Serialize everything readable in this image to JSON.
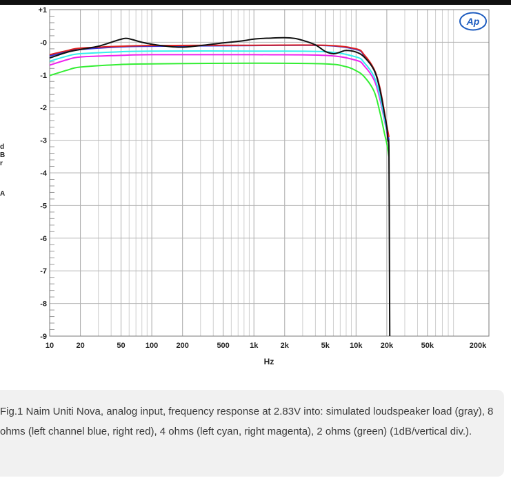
{
  "chart_data": {
    "type": "line",
    "xscale": "log",
    "xlim": [
      10,
      200000
    ],
    "ylim": [
      -9,
      1
    ],
    "xlabel": "Hz",
    "ylabel_chars": [
      "d",
      "B",
      "r",
      "",
      "A"
    ],
    "x_ticks": [
      {
        "v": 10,
        "label": "10"
      },
      {
        "v": 20,
        "label": "20"
      },
      {
        "v": 50,
        "label": "50"
      },
      {
        "v": 100,
        "label": "100"
      },
      {
        "v": 200,
        "label": "200"
      },
      {
        "v": 500,
        "label": "500"
      },
      {
        "v": 1000,
        "label": "1k"
      },
      {
        "v": 2000,
        "label": "2k"
      },
      {
        "v": 5000,
        "label": "5k"
      },
      {
        "v": 10000,
        "label": "10k"
      },
      {
        "v": 20000,
        "label": "20k"
      },
      {
        "v": 50000,
        "label": "50k"
      },
      {
        "v": 200000,
        "label": "200k"
      }
    ],
    "y_ticks": [
      {
        "v": 1,
        "label": "+1"
      },
      {
        "v": 0,
        "label": "-0"
      },
      {
        "v": -1,
        "label": "-1"
      },
      {
        "v": -2,
        "label": "-2"
      },
      {
        "v": -3,
        "label": "-3"
      },
      {
        "v": -4,
        "label": "-4"
      },
      {
        "v": -5,
        "label": "-5"
      },
      {
        "v": -6,
        "label": "-6"
      },
      {
        "v": -7,
        "label": "-7"
      },
      {
        "v": -8,
        "label": "-8"
      },
      {
        "v": -9,
        "label": "-9"
      }
    ],
    "series": [
      {
        "color": "#33ee33",
        "x": [
          10,
          15,
          20,
          50,
          100,
          1000,
          5000,
          8000,
          10000,
          12000,
          15000,
          17000,
          19000,
          20000,
          21000
        ],
        "y": [
          -1.02,
          -0.85,
          -0.76,
          -0.68,
          -0.66,
          -0.64,
          -0.66,
          -0.75,
          -0.87,
          -1.05,
          -1.5,
          -2.1,
          -2.8,
          -3.1,
          -3.5
        ]
      },
      {
        "color": "#ee22ee",
        "x": [
          10,
          15,
          20,
          50,
          100,
          1000,
          5000,
          10000,
          12000,
          15000,
          17000,
          19000,
          20000,
          21000
        ],
        "y": [
          -0.7,
          -0.53,
          -0.45,
          -0.4,
          -0.38,
          -0.38,
          -0.4,
          -0.55,
          -0.72,
          -1.15,
          -1.7,
          -2.4,
          -2.75,
          -3.2
        ]
      },
      {
        "color": "#33eeee",
        "x": [
          10,
          15,
          20,
          50,
          100,
          1000,
          5000,
          10000,
          12000,
          15000,
          17000,
          19000,
          20000,
          21000
        ],
        "y": [
          -0.58,
          -0.42,
          -0.35,
          -0.29,
          -0.27,
          -0.27,
          -0.29,
          -0.45,
          -0.62,
          -1.05,
          -1.6,
          -2.35,
          -2.7,
          -3.0
        ]
      },
      {
        "color": "#3333dd",
        "x": [
          10,
          15,
          20,
          50,
          100,
          1000,
          5000,
          10000,
          12000,
          15000,
          17000,
          19000,
          20000,
          21000
        ],
        "y": [
          -0.42,
          -0.28,
          -0.22,
          -0.14,
          -0.12,
          -0.1,
          -0.1,
          -0.22,
          -0.4,
          -0.85,
          -1.4,
          -2.2,
          -2.6,
          -3.0
        ]
      },
      {
        "color": "#dd2222",
        "x": [
          10,
          15,
          20,
          50,
          100,
          1000,
          5000,
          10000,
          12000,
          15000,
          17000,
          19000,
          20000,
          21000
        ],
        "y": [
          -0.38,
          -0.25,
          -0.18,
          -0.12,
          -0.1,
          -0.09,
          -0.09,
          -0.2,
          -0.38,
          -0.82,
          -1.35,
          -2.15,
          -2.55,
          -2.9
        ]
      },
      {
        "color": "#111111",
        "x": [
          10,
          15,
          20,
          30,
          45,
          55,
          65,
          80,
          100,
          150,
          200,
          300,
          500,
          800,
          1000,
          1500,
          2000,
          2500,
          3000,
          4000,
          5000,
          6000,
          7000,
          8000,
          10000,
          12000,
          15000,
          17000,
          19000,
          20000,
          20500,
          21000,
          21200,
          21400
        ],
        "y": [
          -0.48,
          -0.3,
          -0.22,
          -0.12,
          0.05,
          0.12,
          0.08,
          0.0,
          -0.06,
          -0.13,
          -0.15,
          -0.1,
          -0.02,
          0.05,
          0.1,
          0.13,
          0.14,
          0.12,
          0.06,
          -0.08,
          -0.28,
          -0.35,
          -0.3,
          -0.25,
          -0.3,
          -0.45,
          -0.85,
          -1.4,
          -2.2,
          -2.6,
          -3.0,
          -3.3,
          -6.0,
          -9.0
        ]
      }
    ]
  },
  "caption": "Fig.1 Naim Uniti Nova, analog input, frequency response at 2.83V into: simulated loudspeaker load (gray), 8 ohms (left channel blue, right red), 4 ohms (left cyan, right magenta), 2 ohms (green) (1dB/vertical div.)."
}
